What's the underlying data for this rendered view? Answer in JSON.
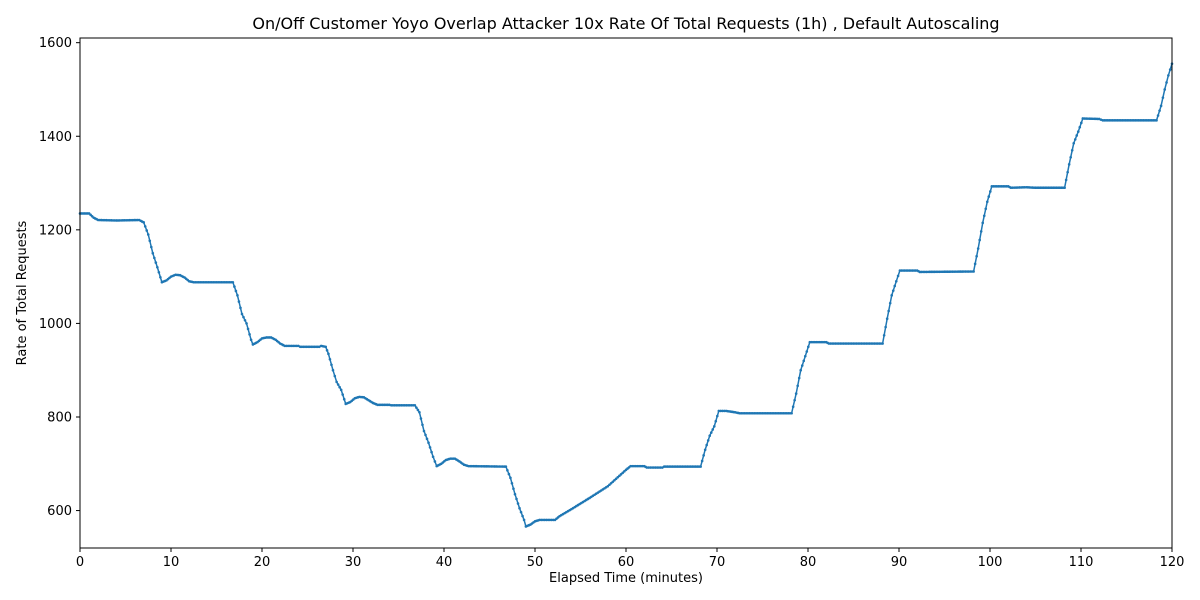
{
  "chart_data": {
    "type": "line",
    "title": "On/Off Customer Yoyo Overlap Attacker 10x Rate Of Total Requests (1h) , Default Autoscaling",
    "xlabel": "Elapsed Time (minutes)",
    "ylabel": "Rate of Total Requests",
    "xlim": [
      0,
      120
    ],
    "ylim": [
      520,
      1610
    ],
    "xticks": [
      0,
      10,
      20,
      30,
      40,
      50,
      60,
      70,
      80,
      90,
      100,
      110,
      120
    ],
    "yticks": [
      600,
      800,
      1000,
      1200,
      1400,
      1600
    ],
    "grid": false,
    "legend": "none",
    "series_color": "#1f77b4",
    "series": [
      {
        "points": [
          [
            0,
            1235
          ],
          [
            1,
            1235
          ],
          [
            1.5,
            1226
          ],
          [
            2,
            1221
          ],
          [
            4,
            1220
          ],
          [
            6.5,
            1221
          ],
          [
            7,
            1216
          ],
          [
            7.5,
            1190
          ],
          [
            8,
            1150
          ],
          [
            8.5,
            1120
          ],
          [
            9,
            1088
          ],
          [
            9.5,
            1092
          ],
          [
            10,
            1100
          ],
          [
            10.5,
            1104
          ],
          [
            11,
            1103
          ],
          [
            11.5,
            1098
          ],
          [
            12,
            1090
          ],
          [
            12.5,
            1088
          ],
          [
            16.8,
            1088
          ],
          [
            17.3,
            1060
          ],
          [
            17.8,
            1020
          ],
          [
            18.3,
            1000
          ],
          [
            18.8,
            965
          ],
          [
            19,
            955
          ],
          [
            19.5,
            960
          ],
          [
            20,
            968
          ],
          [
            20.5,
            970
          ],
          [
            21,
            970
          ],
          [
            21.5,
            965
          ],
          [
            22,
            957
          ],
          [
            22.5,
            952
          ],
          [
            24,
            952
          ],
          [
            24.2,
            950
          ],
          [
            26.3,
            950
          ],
          [
            26.5,
            952
          ],
          [
            27,
            950
          ],
          [
            27.3,
            935
          ],
          [
            27.8,
            900
          ],
          [
            28.2,
            875
          ],
          [
            28.7,
            858
          ],
          [
            29.2,
            828
          ],
          [
            29.7,
            832
          ],
          [
            30.2,
            840
          ],
          [
            30.7,
            843
          ],
          [
            31.2,
            842
          ],
          [
            31.7,
            836
          ],
          [
            32.2,
            830
          ],
          [
            32.7,
            826
          ],
          [
            34,
            826
          ],
          [
            34.2,
            825
          ],
          [
            36.8,
            825
          ],
          [
            37.3,
            810
          ],
          [
            37.8,
            770
          ],
          [
            38.3,
            745
          ],
          [
            38.8,
            715
          ],
          [
            39.2,
            695
          ],
          [
            39.7,
            700
          ],
          [
            40.2,
            708
          ],
          [
            40.7,
            711
          ],
          [
            41.2,
            711
          ],
          [
            41.7,
            705
          ],
          [
            42.2,
            698
          ],
          [
            42.7,
            695
          ],
          [
            46.8,
            694
          ],
          [
            47.3,
            670
          ],
          [
            47.8,
            635
          ],
          [
            48.3,
            605
          ],
          [
            48.8,
            580
          ],
          [
            49,
            566
          ],
          [
            49.5,
            570
          ],
          [
            50,
            577
          ],
          [
            50.5,
            580
          ],
          [
            52.2,
            580
          ],
          [
            52.7,
            588
          ],
          [
            54,
            603
          ],
          [
            56,
            627
          ],
          [
            58,
            652
          ],
          [
            60,
            687
          ],
          [
            60.5,
            695
          ],
          [
            62,
            695
          ],
          [
            62.3,
            692
          ],
          [
            64,
            692
          ],
          [
            64.2,
            694
          ],
          [
            68.2,
            694
          ],
          [
            68.7,
            730
          ],
          [
            69.2,
            760
          ],
          [
            69.7,
            780
          ],
          [
            70.2,
            813
          ],
          [
            71,
            813
          ],
          [
            72,
            810
          ],
          [
            72.5,
            808
          ],
          [
            78.2,
            808
          ],
          [
            78.7,
            850
          ],
          [
            79.2,
            900
          ],
          [
            79.7,
            930
          ],
          [
            80.2,
            960
          ],
          [
            82,
            960
          ],
          [
            82.3,
            957
          ],
          [
            88.2,
            957
          ],
          [
            88.7,
            1010
          ],
          [
            89.2,
            1060
          ],
          [
            89.7,
            1090
          ],
          [
            90.1,
            1113
          ],
          [
            92,
            1113
          ],
          [
            92.3,
            1110
          ],
          [
            98.2,
            1111
          ],
          [
            98.7,
            1160
          ],
          [
            99.2,
            1215
          ],
          [
            99.7,
            1260
          ],
          [
            100.2,
            1293
          ],
          [
            102,
            1293
          ],
          [
            102.3,
            1290
          ],
          [
            104,
            1291
          ],
          [
            105,
            1290
          ],
          [
            108.2,
            1290
          ],
          [
            108.7,
            1340
          ],
          [
            109.2,
            1385
          ],
          [
            109.7,
            1410
          ],
          [
            110.2,
            1438
          ],
          [
            112,
            1437
          ],
          [
            112.4,
            1434
          ],
          [
            118.3,
            1434
          ],
          [
            118.8,
            1465
          ],
          [
            119.2,
            1500
          ],
          [
            119.6,
            1530
          ],
          [
            120,
            1555
          ]
        ]
      }
    ]
  }
}
